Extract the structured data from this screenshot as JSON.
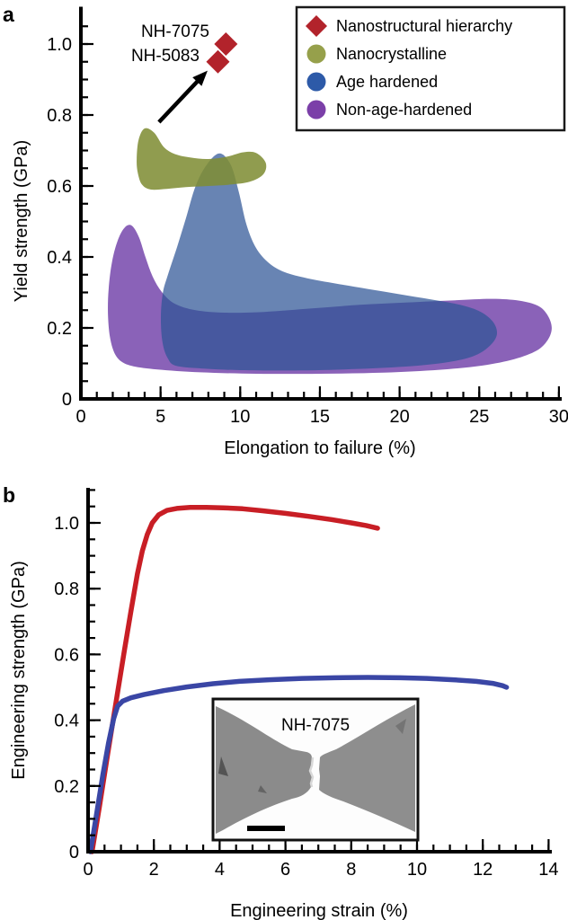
{
  "figure": {
    "panel_a_letter": "a",
    "panel_b_letter": "b"
  },
  "chart_data": [
    {
      "panel": "a",
      "type": "scatter",
      "xlabel": "Elongation to failure (%)",
      "ylabel": "Yield strength (GPa)",
      "xlim": [
        0,
        30
      ],
      "ylim": [
        0,
        1.05
      ],
      "grid": false,
      "x_ticks": [
        0,
        5,
        10,
        15,
        20,
        25,
        30
      ],
      "x_tick_labels": [
        "0",
        "5",
        "10",
        "15",
        "20",
        "25",
        "30"
      ],
      "x_minor_step": 1,
      "y_ticks": [
        0,
        0.2,
        0.4,
        0.6,
        0.8,
        1.0
      ],
      "y_tick_labels": [
        "0",
        "0.2",
        "0.4",
        "0.6",
        "0.8",
        "1.0"
      ],
      "y_minor_step": 0.05,
      "legend": {
        "position": "top-right",
        "items": [
          {
            "label": "Nanostructural hierarchy",
            "marker": "diamond",
            "color": "#b2232b"
          },
          {
            "label": "Nanocrystalline",
            "marker": "circle",
            "color": "#96a04b"
          },
          {
            "label": "Age hardened",
            "marker": "circle",
            "color": "#2d5aa8"
          },
          {
            "label": "Non-age-hardened",
            "marker": "circle",
            "color": "#7b3fa8"
          }
        ]
      },
      "points": [
        {
          "label": "NH-7075",
          "x": 9.1,
          "y": 1.0,
          "marker": "diamond",
          "color": "#b2232b"
        },
        {
          "label": "NH-5083",
          "x": 8.6,
          "y": 0.95,
          "marker": "diamond",
          "color": "#b2232b"
        }
      ],
      "arrow": {
        "from": [
          4.9,
          0.78
        ],
        "to": [
          7.95,
          0.925
        ]
      },
      "regions": [
        {
          "name": "Non-age-hardened",
          "color": "#703fa8",
          "opacity": 0.82,
          "points": [
            [
              2.55,
              0.105
            ],
            [
              2.1,
              0.13
            ],
            [
              1.82,
              0.175
            ],
            [
              1.7,
              0.24
            ],
            [
              1.74,
              0.31
            ],
            [
              1.95,
              0.385
            ],
            [
              2.3,
              0.445
            ],
            [
              2.75,
              0.483
            ],
            [
              3.2,
              0.488
            ],
            [
              3.65,
              0.455
            ],
            [
              4.05,
              0.4
            ],
            [
              4.5,
              0.345
            ],
            [
              5.1,
              0.3
            ],
            [
              5.9,
              0.268
            ],
            [
              7.2,
              0.25
            ],
            [
              9.0,
              0.243
            ],
            [
              11.5,
              0.245
            ],
            [
              14.5,
              0.255
            ],
            [
              17.5,
              0.265
            ],
            [
              20.5,
              0.272
            ],
            [
              23.5,
              0.278
            ],
            [
              25.8,
              0.282
            ],
            [
              27.5,
              0.277
            ],
            [
              28.7,
              0.262
            ],
            [
              29.3,
              0.235
            ],
            [
              29.55,
              0.2
            ],
            [
              29.3,
              0.166
            ],
            [
              28.6,
              0.136
            ],
            [
              27.2,
              0.112
            ],
            [
              25.2,
              0.094
            ],
            [
              22.5,
              0.082
            ],
            [
              19.0,
              0.074
            ],
            [
              15.0,
              0.071
            ],
            [
              11.0,
              0.071
            ],
            [
              7.5,
              0.075
            ],
            [
              4.8,
              0.083
            ],
            [
              3.3,
              0.092
            ]
          ]
        },
        {
          "name": "Age hardened",
          "color": "#2e5496",
          "opacity": 0.72,
          "points": [
            [
              6.0,
              0.093
            ],
            [
              5.45,
              0.115
            ],
            [
              5.12,
              0.16
            ],
            [
              5.02,
              0.23
            ],
            [
              5.15,
              0.3
            ],
            [
              5.5,
              0.355
            ],
            [
              6.05,
              0.43
            ],
            [
              6.6,
              0.51
            ],
            [
              7.2,
              0.6
            ],
            [
              7.9,
              0.66
            ],
            [
              8.7,
              0.692
            ],
            [
              9.4,
              0.66
            ],
            [
              9.9,
              0.585
            ],
            [
              10.4,
              0.49
            ],
            [
              11.0,
              0.425
            ],
            [
              11.8,
              0.383
            ],
            [
              12.8,
              0.357
            ],
            [
              14.2,
              0.34
            ],
            [
              16.0,
              0.325
            ],
            [
              18.0,
              0.31
            ],
            [
              20.0,
              0.295
            ],
            [
              22.0,
              0.28
            ],
            [
              23.8,
              0.265
            ],
            [
              25.1,
              0.245
            ],
            [
              25.9,
              0.215
            ],
            [
              26.1,
              0.18
            ],
            [
              25.6,
              0.147
            ],
            [
              24.6,
              0.12
            ],
            [
              22.8,
              0.102
            ],
            [
              20.0,
              0.09
            ],
            [
              16.5,
              0.083
            ],
            [
              13.0,
              0.08
            ],
            [
              10.0,
              0.081
            ],
            [
              7.8,
              0.085
            ]
          ]
        },
        {
          "name": "Nanocrystalline",
          "color": "#7f8d35",
          "opacity": 0.87,
          "points": [
            [
              3.5,
              0.675
            ],
            [
              3.62,
              0.73
            ],
            [
              4.0,
              0.762
            ],
            [
              4.6,
              0.75
            ],
            [
              5.2,
              0.71
            ],
            [
              5.9,
              0.69
            ],
            [
              6.9,
              0.68
            ],
            [
              8.0,
              0.676
            ],
            [
              9.2,
              0.683
            ],
            [
              10.2,
              0.695
            ],
            [
              11.0,
              0.693
            ],
            [
              11.6,
              0.665
            ],
            [
              11.45,
              0.633
            ],
            [
              10.6,
              0.612
            ],
            [
              9.4,
              0.604
            ],
            [
              8.0,
              0.6
            ],
            [
              6.6,
              0.597
            ],
            [
              5.4,
              0.592
            ],
            [
              4.4,
              0.59
            ],
            [
              3.85,
              0.603
            ],
            [
              3.58,
              0.635
            ]
          ]
        }
      ]
    },
    {
      "panel": "b",
      "type": "line",
      "xlabel": "Engineering strain (%)",
      "ylabel": "Engineering strength (GPa)",
      "xlim": [
        0,
        14
      ],
      "ylim": [
        0,
        1.1
      ],
      "grid": false,
      "x_ticks": [
        0,
        2,
        4,
        6,
        8,
        10,
        12,
        14
      ],
      "x_tick_labels": [
        "0",
        "2",
        "4",
        "6",
        "8",
        "10",
        "12",
        "14"
      ],
      "x_minor_step": 0.5,
      "y_ticks": [
        0,
        0.2,
        0.4,
        0.6,
        0.8,
        1.0
      ],
      "y_tick_labels": [
        "0",
        "0.2",
        "0.4",
        "0.6",
        "0.8",
        "1.0"
      ],
      "y_minor_step": 0.05,
      "series": [
        {
          "name": "NH-7075",
          "color": "#c81e25",
          "x": [
            0.12,
            0.35,
            0.6,
            0.85,
            1.1,
            1.3,
            1.5,
            1.65,
            1.8,
            1.95,
            2.15,
            2.4,
            2.7,
            3.1,
            3.6,
            4.1,
            4.7,
            5.3,
            6.0,
            6.7,
            7.4,
            8.0,
            8.45,
            8.8
          ],
          "y": [
            0,
            0.14,
            0.3,
            0.455,
            0.61,
            0.73,
            0.845,
            0.915,
            0.965,
            1.0,
            1.025,
            1.038,
            1.044,
            1.047,
            1.047,
            1.046,
            1.043,
            1.037,
            1.029,
            1.02,
            1.01,
            1.0,
            0.992,
            0.984
          ]
        },
        {
          "name": "NH-5083",
          "color": "#3a46a5",
          "x": [
            0.07,
            0.25,
            0.45,
            0.62,
            0.78,
            0.9,
            1.05,
            1.3,
            1.7,
            2.3,
            3.0,
            3.8,
            4.6,
            5.5,
            6.5,
            7.5,
            8.5,
            9.5,
            10.3,
            11.1,
            11.8,
            12.3,
            12.6,
            12.72
          ],
          "y": [
            0,
            0.11,
            0.235,
            0.33,
            0.405,
            0.443,
            0.458,
            0.468,
            0.478,
            0.49,
            0.501,
            0.511,
            0.518,
            0.523,
            0.527,
            0.529,
            0.53,
            0.529,
            0.527,
            0.523,
            0.518,
            0.512,
            0.505,
            0.5
          ]
        }
      ],
      "inset": {
        "label": "NH-7075",
        "scale_bar": true
      }
    }
  ]
}
